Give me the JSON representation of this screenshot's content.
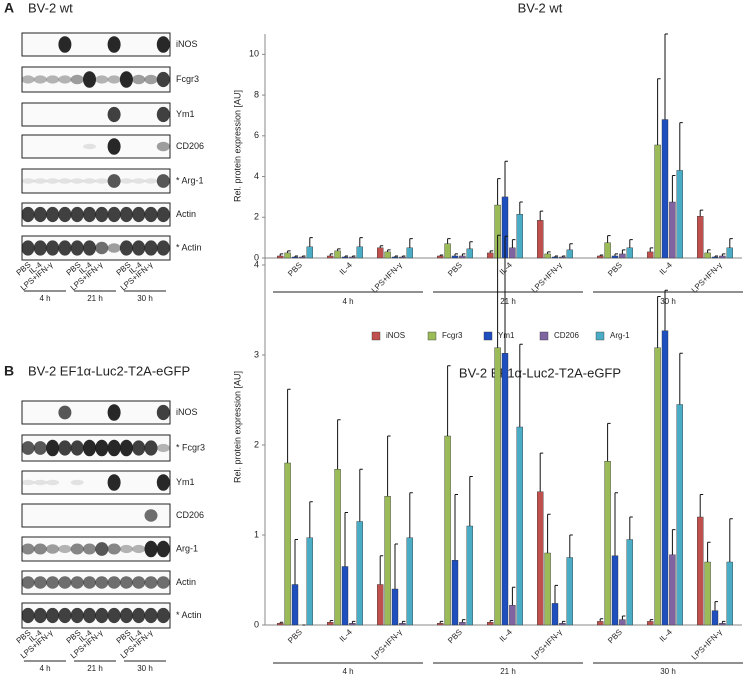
{
  "panel_labels": [
    "A",
    "B"
  ],
  "blots": [
    {
      "title": "BV-2 wt",
      "labels": [
        "iNOS",
        "Fcgr3",
        "Ym1",
        "CD206",
        "* Arg-1",
        "Actin",
        "* Actin"
      ],
      "lanes": [
        "PBS",
        "IL-4",
        "LPS+IFN-γ"
      ],
      "times": [
        "4 h",
        "21 h",
        "30 h"
      ]
    },
    {
      "title": "BV-2 EF1α-Luc2-T2A-eGFP",
      "labels": [
        "iNOS",
        "* Fcgr3",
        "Ym1",
        "CD206",
        "Arg-1",
        "Actin",
        "* Actin"
      ],
      "lanes": [
        "PBS",
        "IL-4",
        "LPS+IFN-γ"
      ],
      "times": [
        "4 h",
        "21 h",
        "30 h"
      ]
    }
  ],
  "chart_data": [
    {
      "type": "bar",
      "title": "BV-2 wt",
      "y_label": "Rel. protein expression [AU]",
      "categories": [
        "PBS",
        "IL-4",
        "LPS+IFN-γ",
        "PBS",
        "IL-4",
        "LPS+IFN-γ",
        "PBS",
        "IL-4",
        "LPS+IFN-γ"
      ],
      "groups": [
        "4 h",
        "21 h",
        "30 h"
      ],
      "ylim": [
        0,
        11
      ],
      "yticks": [
        0,
        2,
        4,
        6,
        8,
        10
      ],
      "grid": false,
      "legend": "bottom",
      "series": [
        {
          "name": "iNOS",
          "color": "#c0504d",
          "values": [
            0.1,
            0.1,
            0.5,
            0.1,
            0.25,
            1.85,
            0.1,
            0.3,
            2.05
          ],
          "errors": [
            0.1,
            0.1,
            0.1,
            0.05,
            0.1,
            0.45,
            0.05,
            0.2,
            0.3
          ]
        },
        {
          "name": "Fcgr3",
          "color": "#9bbb59",
          "values": [
            0.25,
            0.35,
            0.3,
            0.7,
            2.6,
            0.2,
            0.75,
            5.55,
            0.25
          ],
          "errors": [
            0.1,
            0.1,
            0.1,
            0.25,
            1.3,
            0.1,
            0.35,
            3.25,
            0.15
          ]
        },
        {
          "name": "Ym1",
          "color": "#1f4fbf",
          "values": [
            0.05,
            0.05,
            0.05,
            0.1,
            3.0,
            0.05,
            0.1,
            6.8,
            0.05
          ],
          "errors": [
            0.05,
            0.05,
            0.05,
            0.1,
            1.75,
            0.05,
            0.1,
            4.2,
            0.05
          ]
        },
        {
          "name": "CD206",
          "color": "#8064a2",
          "values": [
            0.05,
            0.05,
            0.05,
            0.1,
            0.5,
            0.05,
            0.2,
            2.75,
            0.1
          ],
          "errors": [
            0.05,
            0.05,
            0.05,
            0.1,
            0.4,
            0.05,
            0.2,
            1.3,
            0.1
          ]
        },
        {
          "name": "Arg-1",
          "color": "#4bacc6",
          "values": [
            0.55,
            0.55,
            0.5,
            0.45,
            2.15,
            0.4,
            0.5,
            4.3,
            0.5
          ],
          "errors": [
            0.45,
            0.45,
            0.45,
            0.35,
            0.6,
            0.3,
            0.4,
            2.35,
            0.45
          ]
        }
      ]
    },
    {
      "type": "bar",
      "title": "BV-2 EF1α-Luc2-T2A-eGFP",
      "y_label": "Rel. protein expression [AU]",
      "categories": [
        "PBS",
        "IL-4",
        "LPS+IFN-γ",
        "PBS",
        "IL-4",
        "LPS+IFN-γ",
        "PBS",
        "IL-4",
        "LPS+IFN-γ"
      ],
      "groups": [
        "4 h",
        "21 h",
        "30 h"
      ],
      "ylim": [
        0,
        4.4
      ],
      "yticks": [
        0,
        1,
        2,
        3,
        4
      ],
      "grid": false,
      "series": [
        {
          "color": "#c0504d",
          "values": [
            0.02,
            0.03,
            0.45,
            0.02,
            0.03,
            1.48,
            0.04,
            0.04,
            1.2
          ],
          "errors": [
            0.01,
            0.02,
            0.32,
            0.02,
            0.02,
            0.43,
            0.03,
            0.02,
            0.25
          ]
        },
        {
          "color": "#9bbb59",
          "values": [
            1.8,
            1.73,
            1.43,
            2.1,
            3.08,
            0.8,
            1.82,
            3.08,
            0.7
          ],
          "errors": [
            0.82,
            0.55,
            0.67,
            0.78,
            1.25,
            0.43,
            0.42,
            0.57,
            0.22
          ]
        },
        {
          "color": "#1f4fbf",
          "values": [
            0.45,
            0.65,
            0.4,
            0.72,
            3.02,
            0.24,
            0.77,
            3.27,
            0.16
          ],
          "errors": [
            0.5,
            0.6,
            0.5,
            0.73,
            1.3,
            0.2,
            0.7,
            0.45,
            0.1
          ]
        },
        {
          "color": "#8064a2",
          "values": [
            0,
            0.02,
            0.02,
            0.03,
            0.22,
            0.02,
            0.06,
            0.78,
            0.02
          ],
          "errors": [
            0,
            0.02,
            0.02,
            0.03,
            0.2,
            0.02,
            0.04,
            0.28,
            0.02
          ]
        },
        {
          "color": "#4bacc6",
          "values": [
            0.97,
            1.15,
            0.97,
            1.1,
            2.2,
            0.75,
            0.95,
            2.45,
            0.7
          ],
          "errors": [
            0.4,
            0.58,
            0.5,
            0.55,
            0.92,
            0.25,
            0.25,
            0.57,
            0.48
          ]
        }
      ]
    }
  ]
}
